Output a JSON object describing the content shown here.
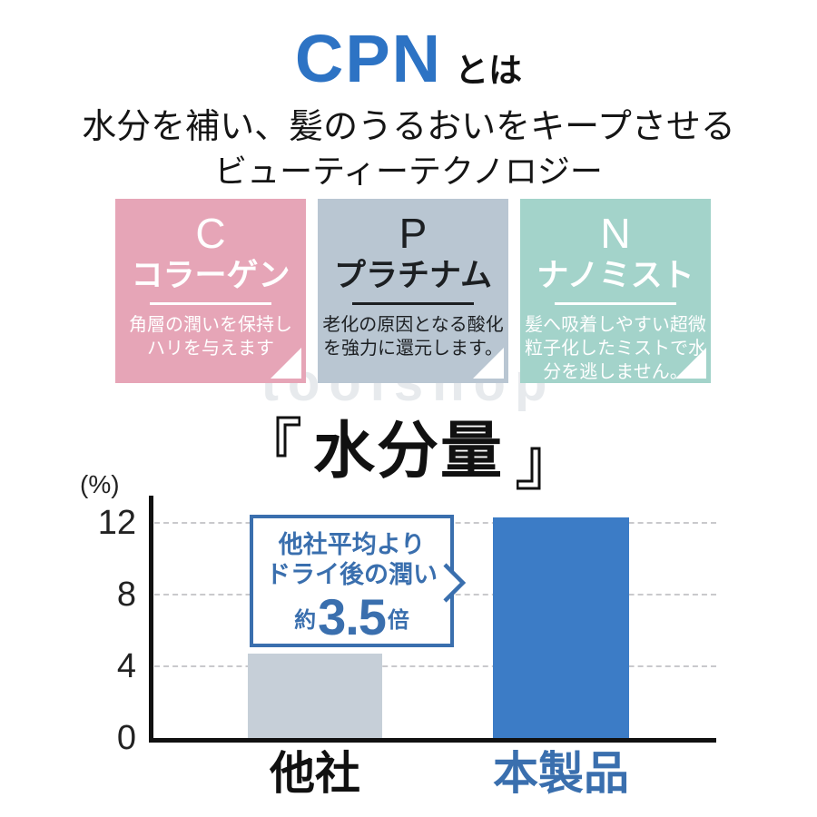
{
  "header": {
    "title_main": "CPN",
    "title_suffix": "とは",
    "title_color": "#2d73c4",
    "subtitle_line1": "水分を補い、髪のうるおいをキープさせる",
    "subtitle_line2": "ビューティーテクノロジー"
  },
  "features": [
    {
      "letter": "C",
      "name": "コラーゲン",
      "description_lines": [
        "角層の潤いを保持し",
        "ハリを与えます"
      ],
      "bg_color": "#e6a5b7",
      "text_color": "#ffffff"
    },
    {
      "letter": "P",
      "name": "プラチナム",
      "description_lines": [
        "老化の原因となる酸化",
        "を強力に還元します。"
      ],
      "bg_color": "#b9c6d2",
      "text_color": "#1c1f22"
    },
    {
      "letter": "N",
      "name": "ナノミスト",
      "description_lines": [
        "髪へ吸着しやすい超微",
        "粒子化したミストで水",
        "分を逃しません。"
      ],
      "bg_color": "#a3d3ca",
      "text_color": "#ffffff"
    }
  ],
  "watermark": {
    "text": "toolshop"
  },
  "chart_section": {
    "title": "水分量"
  },
  "chart_data": {
    "type": "bar",
    "title": "水分量",
    "unit_label": "(%)",
    "categories": [
      "他社",
      "本製品"
    ],
    "values": [
      4.7,
      12.3
    ],
    "bar_colors": [
      "#c6cfd8",
      "#3c7cc6"
    ],
    "category_colors": [
      "#111111",
      "#3a6fae"
    ],
    "y_ticks": [
      0,
      4,
      8,
      12
    ],
    "ylim": [
      0,
      13.5
    ],
    "grid": "horizontal-dashed",
    "legend": "none",
    "annotation": {
      "line1": "他社平均より",
      "line2": "ドライ後の潤い",
      "prefix": "約",
      "value": "3.5",
      "suffix": "倍",
      "color": "#3a6fae"
    }
  }
}
